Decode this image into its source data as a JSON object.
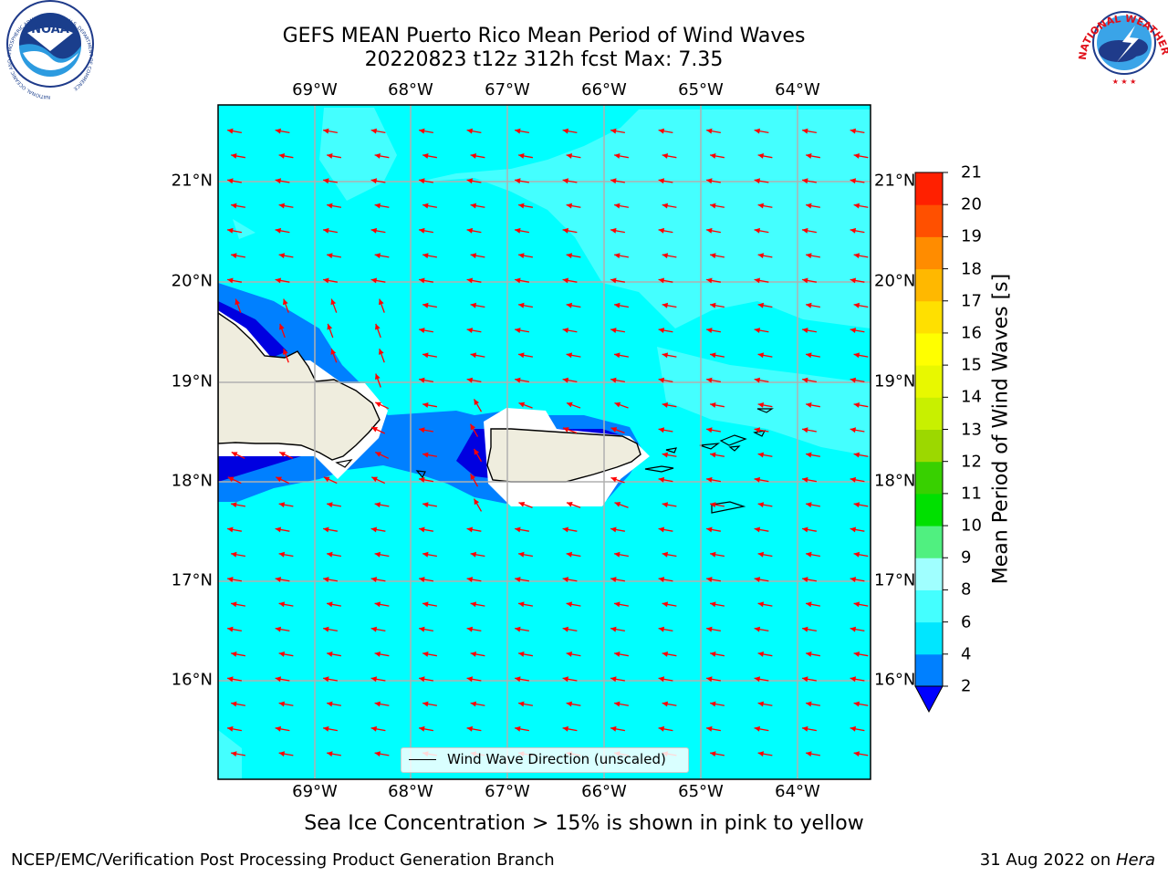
{
  "title": {
    "line1": "GEFS MEAN Puerto Rico Mean Period of Wind Waves",
    "line2": "20220823 t12z 312h fcst   Max: 7.35"
  },
  "map": {
    "lon_labels": [
      "69°W",
      "68°W",
      "67°W",
      "66°W",
      "65°W",
      "64°W"
    ],
    "lat_labels": [
      "21°N",
      "20°N",
      "19°N",
      "18°N",
      "17°N",
      "16°N"
    ],
    "ocean_color": "#00ffff",
    "light_band_color": "#44ffff",
    "shelf_color_blue": "#0080ff",
    "shelf_color_dark": "#0000e0",
    "land_color": "#efedde",
    "arrow_color": "#ff0000",
    "arrow_direction": "westward"
  },
  "legend": {
    "label": "Wind Wave Direction (unscaled)"
  },
  "colorbar": {
    "label": "Mean Period of Wind Waves [s]",
    "ticks": [
      "2",
      "4",
      "6",
      "8",
      "9",
      "10",
      "11",
      "12",
      "13",
      "14",
      "15",
      "16",
      "17",
      "18",
      "19",
      "20",
      "21"
    ],
    "colors": [
      "#0080ff",
      "#00e6ff",
      "#44ffff",
      "#a0ffff",
      "#50f080",
      "#00e000",
      "#38d000",
      "#9cd800",
      "#c8f000",
      "#e8f800",
      "#ffff00",
      "#ffe000",
      "#ffb800",
      "#ff8c00",
      "#ff5000",
      "#ff2000",
      "#ff0000"
    ],
    "under_color": "#0000ff"
  },
  "note": "Sea Ice Concentration > 15% is shown in pink to yellow",
  "footer": {
    "left": "NCEP/EMC/Verification Post Processing Product Generation Branch",
    "right_prefix": "31 Aug 2022 on ",
    "right_host": "Hera"
  },
  "logos": {
    "noaa_text": "NOAA",
    "noaa_ring": "NATIONAL OCEANIC AND ATMOSPHERIC ADMINISTRATION · U.S. DEPARTMENT OF COMMERCE",
    "nws_ring": "NATIONAL WEATHER SERVICE"
  }
}
